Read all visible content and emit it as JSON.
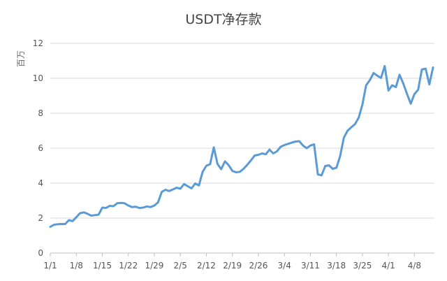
{
  "chart_data": {
    "type": "line",
    "title": "USDT净存款",
    "ylabel": "百万",
    "xlabel": "",
    "ylim": [
      0,
      12
    ],
    "yticks": [
      0,
      2,
      4,
      6,
      8,
      10,
      12
    ],
    "grid": true,
    "legend": "none",
    "x_ticks": [
      "1/1",
      "1/8",
      "1/15",
      "1/22",
      "1/29",
      "2/5",
      "2/12",
      "2/19",
      "2/26",
      "3/4",
      "3/11",
      "3/18",
      "3/25",
      "4/1",
      "4/8"
    ],
    "line_color": "#5b9bd5",
    "series": [
      {
        "values": [
          1.5,
          1.62,
          1.65,
          1.66,
          1.66,
          1.88,
          1.83,
          2.05,
          2.28,
          2.33,
          2.25,
          2.14,
          2.17,
          2.2,
          2.6,
          2.58,
          2.7,
          2.68,
          2.85,
          2.87,
          2.85,
          2.72,
          2.63,
          2.65,
          2.58,
          2.6,
          2.67,
          2.63,
          2.72,
          2.9,
          3.5,
          3.62,
          3.55,
          3.64,
          3.74,
          3.68,
          3.95,
          3.82,
          3.7,
          3.98,
          3.87,
          4.65,
          5.0,
          5.08,
          6.05,
          5.1,
          4.8,
          5.25,
          5.03,
          4.7,
          4.62,
          4.65,
          4.82,
          5.05,
          5.3,
          5.58,
          5.62,
          5.7,
          5.65,
          5.92,
          5.7,
          5.82,
          6.08,
          6.18,
          6.25,
          6.32,
          6.38,
          6.4,
          6.15,
          6.0,
          6.15,
          6.22,
          4.5,
          4.45,
          4.98,
          5.02,
          4.82,
          4.88,
          5.55,
          6.6,
          7.0,
          7.2,
          7.38,
          7.75,
          8.5,
          9.6,
          9.9,
          10.3,
          10.15,
          10.02,
          10.7,
          9.3,
          9.6,
          9.5,
          10.2,
          9.7,
          9.1,
          8.55,
          9.1,
          9.35,
          10.5,
          10.55,
          9.65,
          10.62
        ]
      }
    ]
  }
}
